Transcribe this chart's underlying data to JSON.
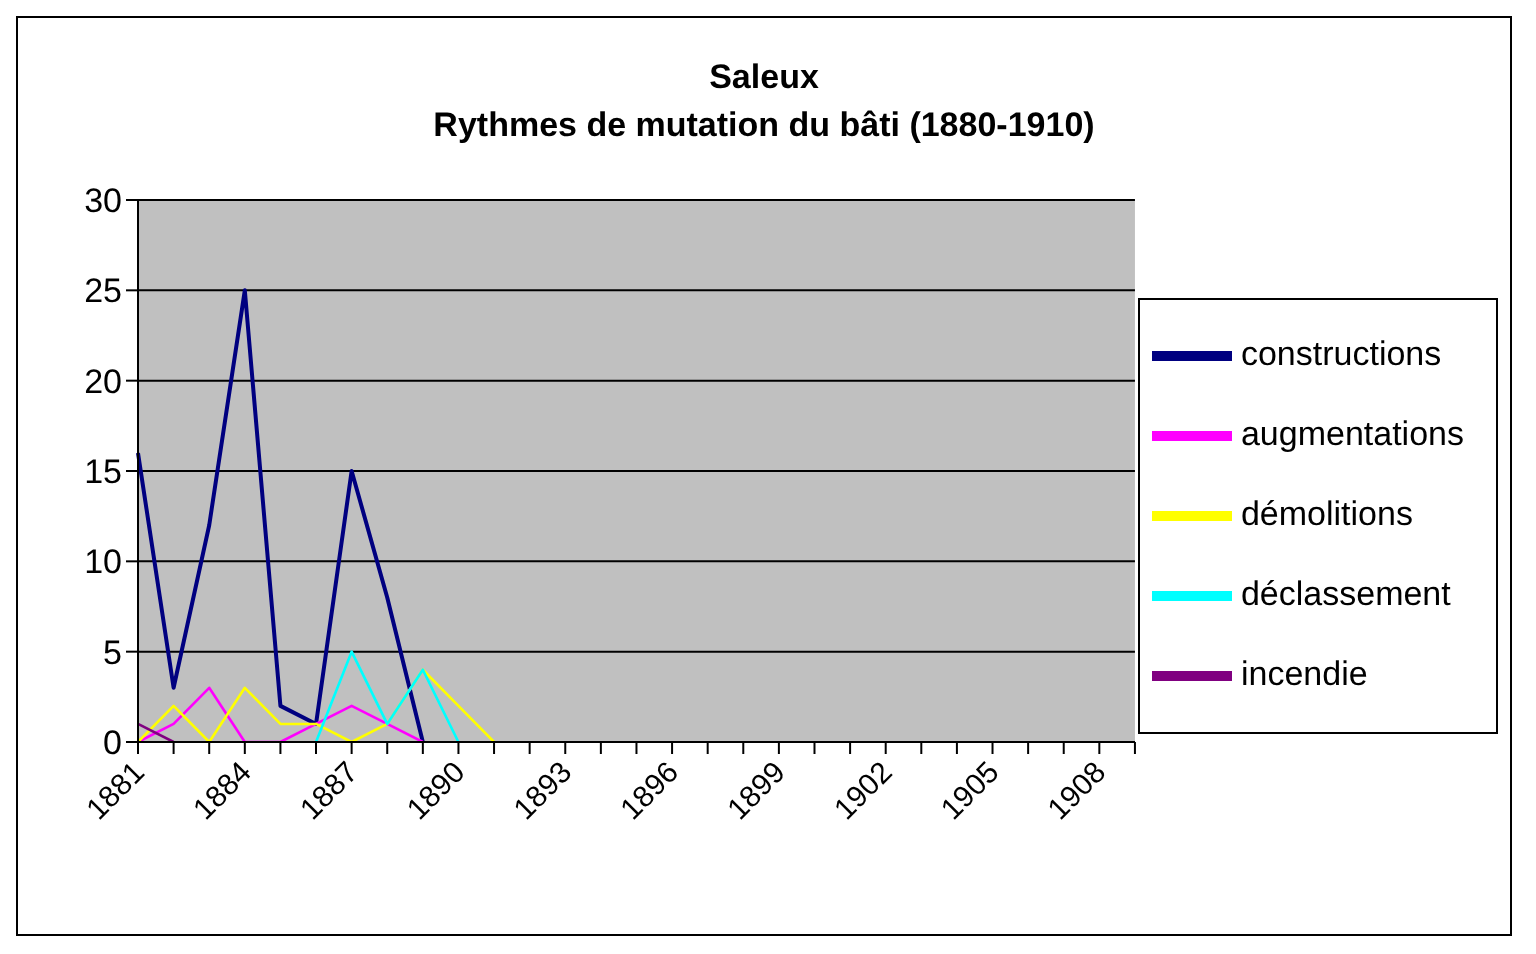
{
  "chart_data": {
    "type": "line",
    "title": "Saleux",
    "subtitle": "Rythmes de mutation du bâti (1880-1910)",
    "categories": [
      "1881",
      null,
      null,
      "1884",
      null,
      null,
      "1887",
      null,
      null,
      "1890",
      null,
      null,
      "1893",
      null,
      null,
      "1896",
      null,
      null,
      "1899",
      null,
      null,
      "1902",
      null,
      null,
      "1905",
      null,
      null,
      "1908",
      null
    ],
    "series": [
      {
        "name": "constructions",
        "color": "#000080",
        "values": [
          16,
          3,
          12,
          25,
          2,
          1,
          15,
          8,
          0,
          null,
          null,
          null,
          null,
          null,
          null,
          null,
          null,
          null,
          null,
          null,
          null,
          null,
          null,
          null,
          null,
          null,
          null,
          null,
          null
        ]
      },
      {
        "name": "augmentations",
        "color": "#ff00ff",
        "values": [
          0,
          1,
          3,
          0,
          0,
          1,
          2,
          1,
          0,
          null,
          null,
          null,
          null,
          null,
          null,
          null,
          null,
          null,
          null,
          null,
          null,
          null,
          null,
          null,
          null,
          null,
          null,
          null,
          null
        ]
      },
      {
        "name": "démolitions",
        "color": "#ffff00",
        "values": [
          0,
          2,
          0,
          3,
          1,
          1,
          0,
          1,
          4,
          2,
          0,
          null,
          null,
          null,
          null,
          null,
          null,
          null,
          null,
          null,
          null,
          null,
          null,
          null,
          null,
          null,
          null,
          null,
          null
        ]
      },
      {
        "name": "déclassement",
        "color": "#00ffff",
        "values": [
          null,
          null,
          null,
          null,
          null,
          0,
          5,
          1,
          4,
          0,
          null,
          null,
          null,
          null,
          null,
          null,
          null,
          null,
          null,
          null,
          null,
          null,
          null,
          null,
          null,
          null,
          null,
          null,
          null
        ]
      },
      {
        "name": "incendie",
        "color": "#800080",
        "values": [
          1,
          0,
          null,
          null,
          null,
          null,
          null,
          null,
          null,
          null,
          null,
          null,
          null,
          null,
          null,
          null,
          null,
          null,
          null,
          null,
          null,
          null,
          null,
          null,
          null,
          null,
          null,
          null,
          null
        ]
      }
    ],
    "ylim": [
      0,
      30
    ],
    "yticks": [
      0,
      5,
      10,
      15,
      20,
      25,
      30
    ],
    "grid": "y",
    "legend": "right",
    "marker": "none",
    "line_style": "solid"
  }
}
